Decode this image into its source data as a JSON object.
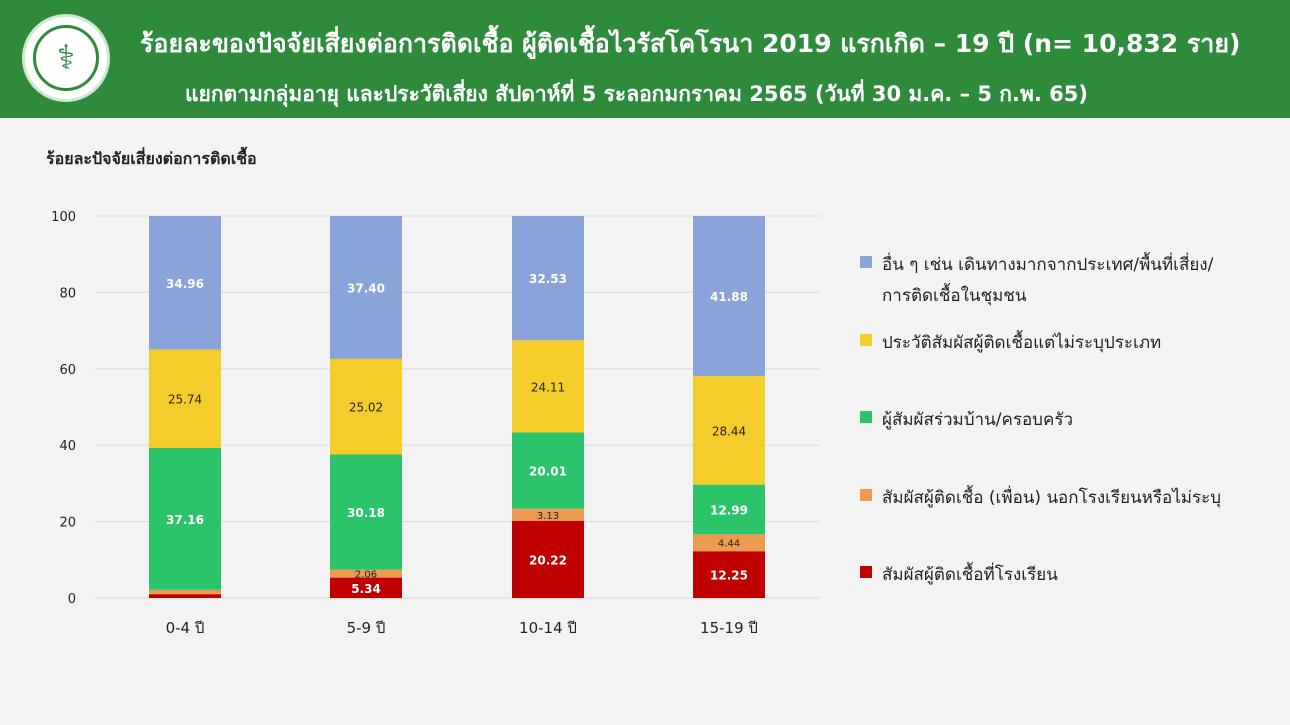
{
  "header": {
    "title_line1": "ร้อยละของปัจจัยเสี่ยงต่อการติดเชื้อ ผู้ติดเชื้อไวรัสโคโรนา 2019 แรกเกิด – 19 ปี  (n= 10,832 ราย)",
    "title_line2": "แยกตามกลุ่มอายุ และประวัติเสี่ยง สัปดาห์ที่ 5 ระลอกมกราคม 2565 (วันที่ 30 ม.ค. – 5 ก.พ. 65)",
    "logo_icon": "ministry-of-public-health-seal",
    "background_color": "#2e8b3c"
  },
  "chart_data": {
    "type": "bar",
    "stacked": true,
    "title": "",
    "ylabel": "ร้อยละปัจจัยเสี่ยงต่อการติดเชื้อ",
    "xlabel": "",
    "ylim": [
      0,
      100
    ],
    "yticks": [
      "0",
      "20",
      "40",
      "60",
      "80",
      "100"
    ],
    "grid": true,
    "legend_position": "right",
    "categories": [
      "0-4 ปี",
      "5-9 ปี",
      "10-14 ปี",
      "15-19 ปี"
    ],
    "series": [
      {
        "name": "สัมผัสผู้ติดเชื้อที่โรงเรียน",
        "color": "#c00000",
        "values": [
          1.0,
          5.34,
          20.22,
          12.25
        ],
        "labels": [
          "",
          "5.34",
          "20.22",
          "12.25"
        ]
      },
      {
        "name": "สัมผัสผู้ติดเชื้อ (เพื่อน) นอกโรงเรียนหรือไม่ระบุ",
        "color": "#ed9b51",
        "values": [
          1.14,
          2.06,
          3.13,
          4.44
        ],
        "labels": [
          "",
          "2.06",
          "3.13",
          "4.44"
        ]
      },
      {
        "name": "ผู้สัมผัสร่วมบ้าน/ครอบครัว",
        "color": "#2cc46a",
        "values": [
          37.16,
          30.18,
          20.01,
          12.99
        ],
        "labels": [
          "37.16",
          "30.18",
          "20.01",
          "12.99"
        ]
      },
      {
        "name": "ประวัติสัมผัสผู้ติดเชื้อแต่ไม่ระบุประเภท",
        "color": "#f5cd2b",
        "values": [
          25.74,
          25.02,
          24.11,
          28.44
        ],
        "labels": [
          "25.74",
          "25.02",
          "24.11",
          "28.44"
        ]
      },
      {
        "name": "อื่น ๆ เช่น เดินทางมากจากประเทศ/พื้นที่เสี่ยง/การติดเชื้อในชุมชน",
        "color": "#8aa3d9",
        "values": [
          34.96,
          37.4,
          32.53,
          41.88
        ],
        "labels": [
          "34.96",
          "37.40",
          "32.53",
          "41.88"
        ]
      }
    ]
  },
  "legend": {
    "items": [
      {
        "line1": "อื่น ๆ เช่น เดินทางมากจากประเทศ/พื้นที่เสี่ยง/",
        "line2": "การติดเชื้อในชุมชน",
        "color": "#8aa3d9"
      },
      {
        "line1": "ประวัติสัมผัสผู้ติดเชื้อแต่ไม่ระบุประเภท",
        "line2": "",
        "color": "#f5cd2b"
      },
      {
        "line1": "ผู้สัมผัสร่วมบ้าน/ครอบครัว",
        "line2": "",
        "color": "#2cc46a"
      },
      {
        "line1": "สัมผัสผู้ติดเชื้อ (เพื่อน) นอกโรงเรียนหรือไม่ระบุ",
        "line2": "",
        "color": "#ed9b51"
      },
      {
        "line1": "สัมผัสผู้ติดเชื้อที่โรงเรียน",
        "line2": "",
        "color": "#c00000"
      }
    ]
  }
}
